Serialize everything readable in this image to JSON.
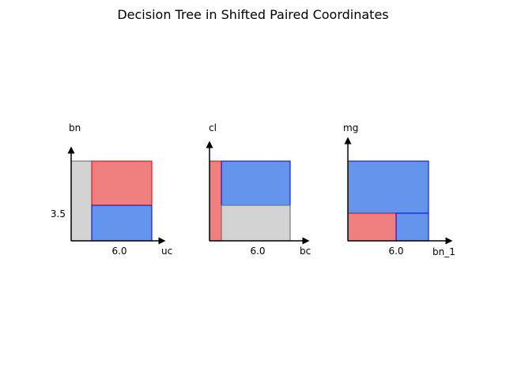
{
  "title": "Decision Tree in Shifted Paired Coordinates",
  "panels": [
    {
      "y_label": "bn",
      "x_label": "uc",
      "x_tick": "6.0",
      "y_tick": "3.5"
    },
    {
      "y_label": "cl",
      "x_label": "bc",
      "x_tick": "6.0"
    },
    {
      "y_label": "mg",
      "x_label": "bn_1",
      "x_tick": "6.0"
    }
  ]
}
